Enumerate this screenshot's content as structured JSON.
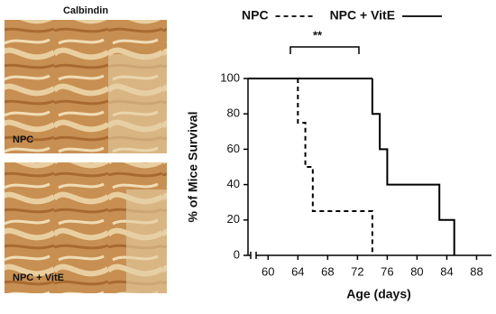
{
  "images": {
    "title": "Calbindin",
    "labels": [
      "NPC",
      "NPC + VitE"
    ]
  },
  "chart_data": {
    "type": "line",
    "x_label": "Age (days)",
    "y_label": "% of Mice Survival",
    "annotation": "**",
    "series": [
      {
        "name": "NPC",
        "color": "#000000",
        "linestyle": "dashed",
        "x": [
          64,
          64,
          65,
          65,
          66,
          66,
          74,
          74
        ],
        "values": [
          100,
          75,
          75,
          50,
          50,
          25,
          25,
          0
        ]
      },
      {
        "name": "NPC + VitE",
        "color": "#000000",
        "linestyle": "solid",
        "x": [
          74,
          74,
          75,
          75,
          76,
          76,
          83,
          83,
          85,
          85
        ],
        "values": [
          100,
          80,
          80,
          60,
          60,
          40,
          40,
          20,
          20,
          0
        ]
      }
    ],
    "xlim": [
      57.3,
      90
    ],
    "xticks": [
      60,
      64,
      68,
      72,
      76,
      80,
      84,
      88
    ],
    "ylim": [
      0,
      100
    ],
    "yticks": [
      0,
      20,
      40,
      60,
      80,
      100
    ]
  }
}
